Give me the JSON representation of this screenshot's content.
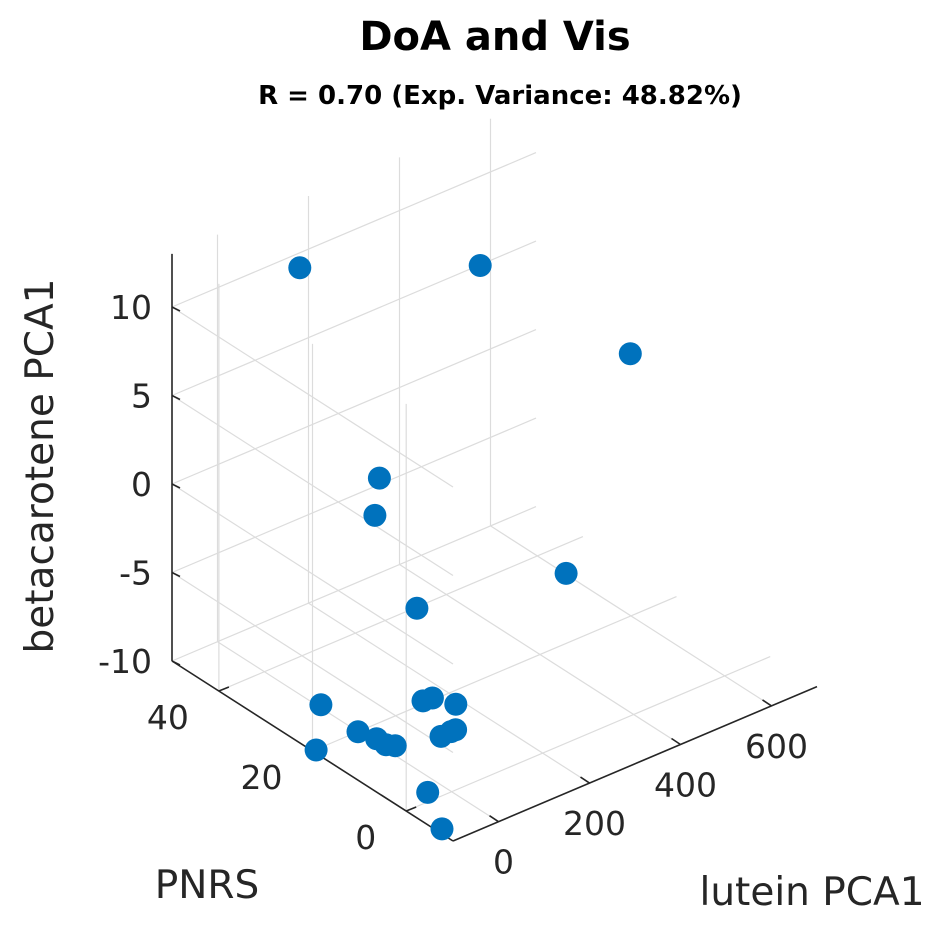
{
  "chart_data": {
    "type": "scatter3d",
    "title": "DoA and Vis",
    "subtitle": "R = 0.70 (Exp. Variance: 48.82%)",
    "xlabel": "lutein PCA1",
    "ylabel": "PNRS",
    "zlabel": "betacarotene PCA1",
    "xticks": [
      "0",
      "200",
      "400",
      "600"
    ],
    "yticks": [
      "0",
      "20",
      "40"
    ],
    "zticks": [
      "10",
      "5",
      "0",
      "-5",
      "-10"
    ],
    "xlim": [
      -100,
      700
    ],
    "ylim": [
      -10,
      50
    ],
    "zlim": [
      -10,
      13
    ],
    "grid": true,
    "marker_color": "#0072bd",
    "points": [
      {
        "x": 300,
        "y": -9,
        "z": 13
      },
      {
        "x": 150,
        "y": 47,
        "z": 10
      },
      {
        "x": 200,
        "y": -5,
        "z": 1
      },
      {
        "x": 150,
        "y": 30,
        "z": 1
      },
      {
        "x": 140,
        "y": 30,
        "z": -1
      },
      {
        "x": 320,
        "y": 25,
        "z": 12
      },
      {
        "x": 150,
        "y": 22,
        "z": -5
      },
      {
        "x": 40,
        "y": 3,
        "z": -6
      },
      {
        "x": 40,
        "y": 8,
        "z": -6.5
      },
      {
        "x": 40,
        "y": 10,
        "z": -7
      },
      {
        "x": 50,
        "y": 5,
        "z": -8
      },
      {
        "x": 60,
        "y": 5,
        "z": -8
      },
      {
        "x": 100,
        "y": 12,
        "z": -10
      },
      {
        "x": -30,
        "y": 25,
        "z": -9
      },
      {
        "x": 10,
        "y": 15,
        "z": -10
      },
      {
        "x": 0,
        "y": 20,
        "z": -10
      },
      {
        "x": 10,
        "y": 17,
        "z": -10
      },
      {
        "x": 20,
        "y": 14,
        "z": -10
      },
      {
        "x": 40,
        "y": 9,
        "z": -12
      },
      {
        "x": -20,
        "y": 27,
        "z": -12
      },
      {
        "x": 20,
        "y": 4,
        "z": -13
      }
    ]
  }
}
